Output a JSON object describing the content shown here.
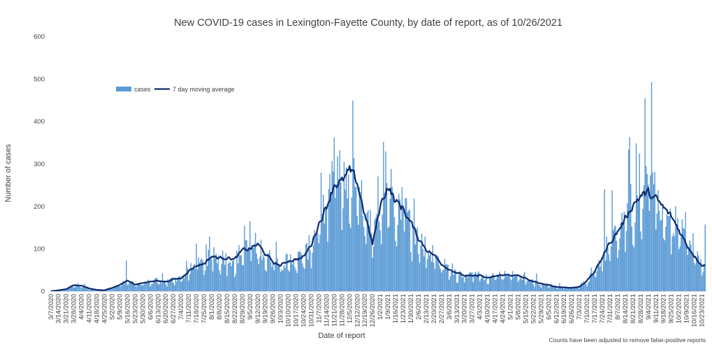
{
  "chart_data": {
    "type": "bar",
    "title": "New COVID-19 cases in Lexington-Fayette County, by date of report, as of 10/26/2021",
    "xlabel": "Date of report",
    "ylabel": "Number of cases",
    "ylim": [
      0,
      600
    ],
    "y_ticks": [
      0,
      100,
      200,
      300,
      400,
      500,
      600
    ],
    "footnote": "Counts have been adjusted to remove false-positive reports",
    "legend": {
      "position": "top-left",
      "bars_label": "cases",
      "line_label": "7 day moving average"
    },
    "colors": {
      "bars": "#5b9bd5",
      "line": "#0d2a6b",
      "text": "#404040"
    },
    "x_start": "2020-03-07",
    "x_end": "2021-10-26",
    "x_tick_labels": [
      "3/7/2020",
      "3/14/2020",
      "3/21/2020",
      "3/28/2020",
      "4/4/2020",
      "4/11/2020",
      "4/18/2020",
      "4/25/2020",
      "5/2/2020",
      "5/9/2020",
      "5/16/2020",
      "5/23/2020",
      "5/30/2020",
      "6/6/2020",
      "6/13/2020",
      "6/20/2020",
      "6/27/2020",
      "7/4/2020",
      "7/11/2020",
      "7/18/2020",
      "7/25/2020",
      "8/1/2020",
      "8/8/2020",
      "8/15/2020",
      "8/22/2020",
      "8/29/2020",
      "9/5/2020",
      "9/12/2020",
      "9/19/2020",
      "9/26/2020",
      "10/3/2020",
      "10/10/2020",
      "10/17/2020",
      "10/24/2020",
      "10/31/2020",
      "11/7/2020",
      "11/14/2020",
      "11/21/2020",
      "11/28/2020",
      "12/5/2020",
      "12/12/2020",
      "12/19/2020",
      "12/26/2020",
      "1/2/2021",
      "1/9/2021",
      "1/16/2021",
      "1/23/2021",
      "1/30/2021",
      "2/6/2021",
      "2/13/2021",
      "2/20/2021",
      "2/27/2021",
      "3/6/2021",
      "3/13/2021",
      "3/20/2021",
      "3/27/2021",
      "4/3/2021",
      "4/10/2021",
      "4/17/2021",
      "4/24/2021",
      "5/1/2021",
      "5/8/2021",
      "5/15/2021",
      "5/22/2021",
      "5/29/2021",
      "6/5/2021",
      "6/12/2021",
      "6/19/2021",
      "6/26/2021",
      "7/3/2021",
      "7/10/2021",
      "7/17/2021",
      "7/24/2021",
      "7/31/2021",
      "8/7/2021",
      "8/14/2021",
      "8/21/2021",
      "8/28/2021",
      "9/4/2021",
      "9/11/2021",
      "9/18/2021",
      "9/25/2021",
      "10/2/2021",
      "10/9/2021",
      "10/16/2021",
      "10/23/2021"
    ],
    "moving_average_by_week": [
      [
        "3/7/2020",
        0
      ],
      [
        "3/14/2020",
        2
      ],
      [
        "3/21/2020",
        5
      ],
      [
        "3/28/2020",
        14
      ],
      [
        "4/4/2020",
        13
      ],
      [
        "4/11/2020",
        6
      ],
      [
        "4/18/2020",
        3
      ],
      [
        "4/25/2020",
        2
      ],
      [
        "5/2/2020",
        8
      ],
      [
        "5/9/2020",
        15
      ],
      [
        "5/16/2020",
        25
      ],
      [
        "5/23/2020",
        15
      ],
      [
        "5/30/2020",
        20
      ],
      [
        "6/6/2020",
        22
      ],
      [
        "6/13/2020",
        25
      ],
      [
        "6/20/2020",
        22
      ],
      [
        "6/27/2020",
        28
      ],
      [
        "7/4/2020",
        30
      ],
      [
        "7/11/2020",
        48
      ],
      [
        "7/18/2020",
        60
      ],
      [
        "7/25/2020",
        65
      ],
      [
        "8/1/2020",
        82
      ],
      [
        "8/8/2020",
        78
      ],
      [
        "8/15/2020",
        80
      ],
      [
        "8/22/2020",
        75
      ],
      [
        "8/29/2020",
        95
      ],
      [
        "9/5/2020",
        100
      ],
      [
        "9/12/2020",
        110
      ],
      [
        "9/19/2020",
        88
      ],
      [
        "9/26/2020",
        68
      ],
      [
        "10/3/2020",
        60
      ],
      [
        "10/10/2020",
        72
      ],
      [
        "10/17/2020",
        75
      ],
      [
        "10/24/2020",
        80
      ],
      [
        "10/31/2020",
        110
      ],
      [
        "11/7/2020",
        160
      ],
      [
        "11/14/2020",
        200
      ],
      [
        "11/21/2020",
        255
      ],
      [
        "11/28/2020",
        255
      ],
      [
        "12/5/2020",
        280
      ],
      [
        "12/12/2020",
        255
      ],
      [
        "12/19/2020",
        180
      ],
      [
        "12/26/2020",
        110
      ],
      [
        "1/2/2021",
        200
      ],
      [
        "1/9/2021",
        250
      ],
      [
        "1/16/2021",
        210
      ],
      [
        "1/23/2021",
        195
      ],
      [
        "1/30/2021",
        160
      ],
      [
        "2/6/2021",
        125
      ],
      [
        "2/13/2021",
        100
      ],
      [
        "2/20/2021",
        85
      ],
      [
        "2/27/2021",
        65
      ],
      [
        "3/6/2021",
        52
      ],
      [
        "3/13/2021",
        44
      ],
      [
        "3/20/2021",
        36
      ],
      [
        "3/27/2021",
        35
      ],
      [
        "4/3/2021",
        38
      ],
      [
        "4/10/2021",
        30
      ],
      [
        "4/17/2021",
        35
      ],
      [
        "4/24/2021",
        38
      ],
      [
        "5/1/2021",
        38
      ],
      [
        "5/8/2021",
        36
      ],
      [
        "5/15/2021",
        30
      ],
      [
        "5/22/2021",
        22
      ],
      [
        "5/29/2021",
        18
      ],
      [
        "6/5/2021",
        14
      ],
      [
        "6/12/2021",
        10
      ],
      [
        "6/19/2021",
        9
      ],
      [
        "6/26/2021",
        8
      ],
      [
        "7/3/2021",
        10
      ],
      [
        "7/10/2021",
        25
      ],
      [
        "7/17/2021",
        45
      ],
      [
        "7/24/2021",
        80
      ],
      [
        "7/31/2021",
        115
      ],
      [
        "8/7/2021",
        140
      ],
      [
        "8/14/2021",
        170
      ],
      [
        "8/21/2021",
        205
      ],
      [
        "8/28/2021",
        225
      ],
      [
        "9/4/2021",
        230
      ],
      [
        "9/11/2021",
        215
      ],
      [
        "9/18/2021",
        195
      ],
      [
        "9/25/2021",
        175
      ],
      [
        "10/2/2021",
        145
      ],
      [
        "10/9/2021",
        110
      ],
      [
        "10/16/2021",
        85
      ],
      [
        "10/23/2021",
        62
      ],
      [
        "10/26/2021",
        60
      ]
    ],
    "daily_cases_notable": [
      [
        "9/7/2021",
        492
      ],
      [
        "12/8/2020",
        449
      ],
      [
        "11/21/2020",
        362
      ],
      [
        "1/7/2021",
        329
      ],
      [
        "8/24/2021",
        348
      ],
      [
        "11/26/2020",
        332
      ],
      [
        "8/17/2021",
        333
      ],
      [
        "7/26/2021",
        240
      ],
      [
        "8/2/2021",
        238
      ],
      [
        "9/5/2020",
        165
      ],
      [
        "7/18/2020",
        112
      ],
      [
        "5/15/2020",
        72
      ],
      [
        "10/26/2021",
        157
      ]
    ]
  }
}
